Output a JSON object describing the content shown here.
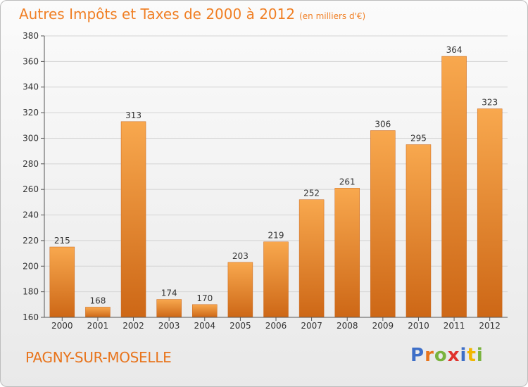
{
  "title": "Autres Impôts et Taxes de 2000 à 2012",
  "subtitle": "(en milliers d'€)",
  "town": "PAGNY-SUR-MOSELLE",
  "logo": {
    "text": "Proxiti",
    "letters": [
      {
        "ch": "P",
        "color": "#3e6fc8"
      },
      {
        "ch": "r",
        "color": "#e8741c"
      },
      {
        "ch": "o",
        "color": "#7ab33e"
      },
      {
        "ch": "x",
        "color": "#e0322c"
      },
      {
        "ch": "i",
        "color": "#3e6fc8"
      },
      {
        "ch": "t",
        "color": "#f2b600"
      },
      {
        "ch": "i",
        "color": "#7ab33e"
      }
    ]
  },
  "colors": {
    "bar_light": "#f8a84e",
    "bar_dark": "#cd6716",
    "title": "#f07f24"
  },
  "chart_data": {
    "type": "bar",
    "categories": [
      "2000",
      "2001",
      "2002",
      "2003",
      "2004",
      "2005",
      "2006",
      "2007",
      "2008",
      "2009",
      "2010",
      "2011",
      "2012"
    ],
    "values": [
      215,
      168,
      313,
      174,
      170,
      203,
      219,
      252,
      261,
      306,
      295,
      364,
      323
    ],
    "yticks": [
      160,
      180,
      200,
      220,
      240,
      260,
      280,
      300,
      320,
      340,
      360,
      380
    ],
    "ylim": [
      160,
      380
    ],
    "grid": true
  }
}
